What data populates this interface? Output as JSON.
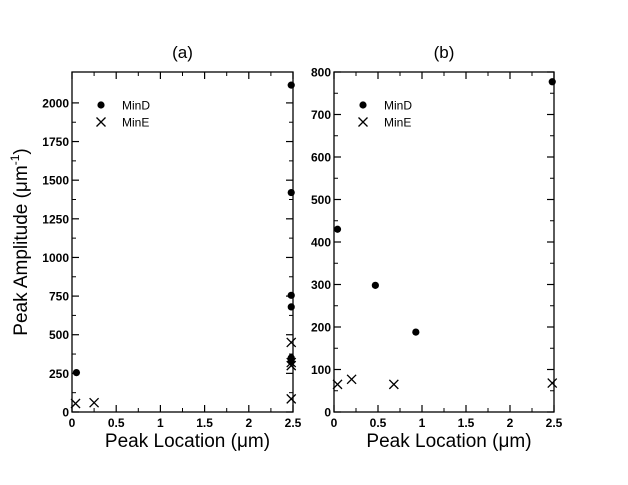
{
  "chart_data": [
    {
      "panel": "(a)",
      "type": "scatter",
      "title": "(a)",
      "xlabel": "Peak Location  (μm)",
      "ylabel_main": "Peak Amplitude  (μm",
      "ylabel_sup": "-1",
      "ylabel_close": ")",
      "xlim": [
        0,
        2.5
      ],
      "ylim": [
        0,
        2200
      ],
      "xticks": [
        0,
        0.5,
        1,
        1.5,
        2,
        2.5
      ],
      "xtick_labels": [
        "0",
        "0.5",
        "1",
        "1.5",
        "2",
        "2.5"
      ],
      "yticks": [
        0,
        250,
        500,
        750,
        1000,
        1250,
        1500,
        1750,
        2000
      ],
      "ytick_labels": [
        "0",
        "250",
        "500",
        "750",
        "1000",
        "1250",
        "1500",
        "1750",
        "2000"
      ],
      "legend_position": "top-left",
      "series": [
        {
          "name": "MinD",
          "marker": "circle",
          "points": [
            [
              0.05,
              255
            ],
            [
              2.48,
              2115
            ],
            [
              2.48,
              1420
            ],
            [
              2.48,
              755
            ],
            [
              2.48,
              680
            ],
            [
              2.48,
              350
            ],
            [
              2.48,
              330
            ]
          ]
        },
        {
          "name": "MinE",
          "marker": "x",
          "points": [
            [
              0.04,
              55
            ],
            [
              0.25,
              60
            ],
            [
              2.48,
              450
            ],
            [
              2.48,
              320
            ],
            [
              2.48,
              300
            ],
            [
              2.48,
              85
            ]
          ]
        }
      ]
    },
    {
      "panel": "(b)",
      "type": "scatter",
      "title": "(b)",
      "xlabel": "Peak Location  (μm)",
      "xlim": [
        0,
        2.5
      ],
      "ylim": [
        0,
        800
      ],
      "xticks": [
        0,
        0.5,
        1,
        1.5,
        2,
        2.5
      ],
      "xtick_labels": [
        "0",
        "0.5",
        "1",
        "1.5",
        "2",
        "2.5"
      ],
      "yticks": [
        0,
        100,
        200,
        300,
        400,
        500,
        600,
        700,
        800
      ],
      "ytick_labels": [
        "0",
        "100",
        "200",
        "300",
        "400",
        "500",
        "600",
        "700",
        "800"
      ],
      "legend_position": "top-left",
      "series": [
        {
          "name": "MinD",
          "marker": "circle",
          "points": [
            [
              0.04,
              430
            ],
            [
              0.47,
              298
            ],
            [
              0.93,
              188
            ],
            [
              2.48,
              777
            ]
          ]
        },
        {
          "name": "MinE",
          "marker": "x",
          "points": [
            [
              0.04,
              65
            ],
            [
              0.2,
              77
            ],
            [
              0.68,
              65
            ],
            [
              2.48,
              68
            ]
          ]
        }
      ]
    }
  ]
}
